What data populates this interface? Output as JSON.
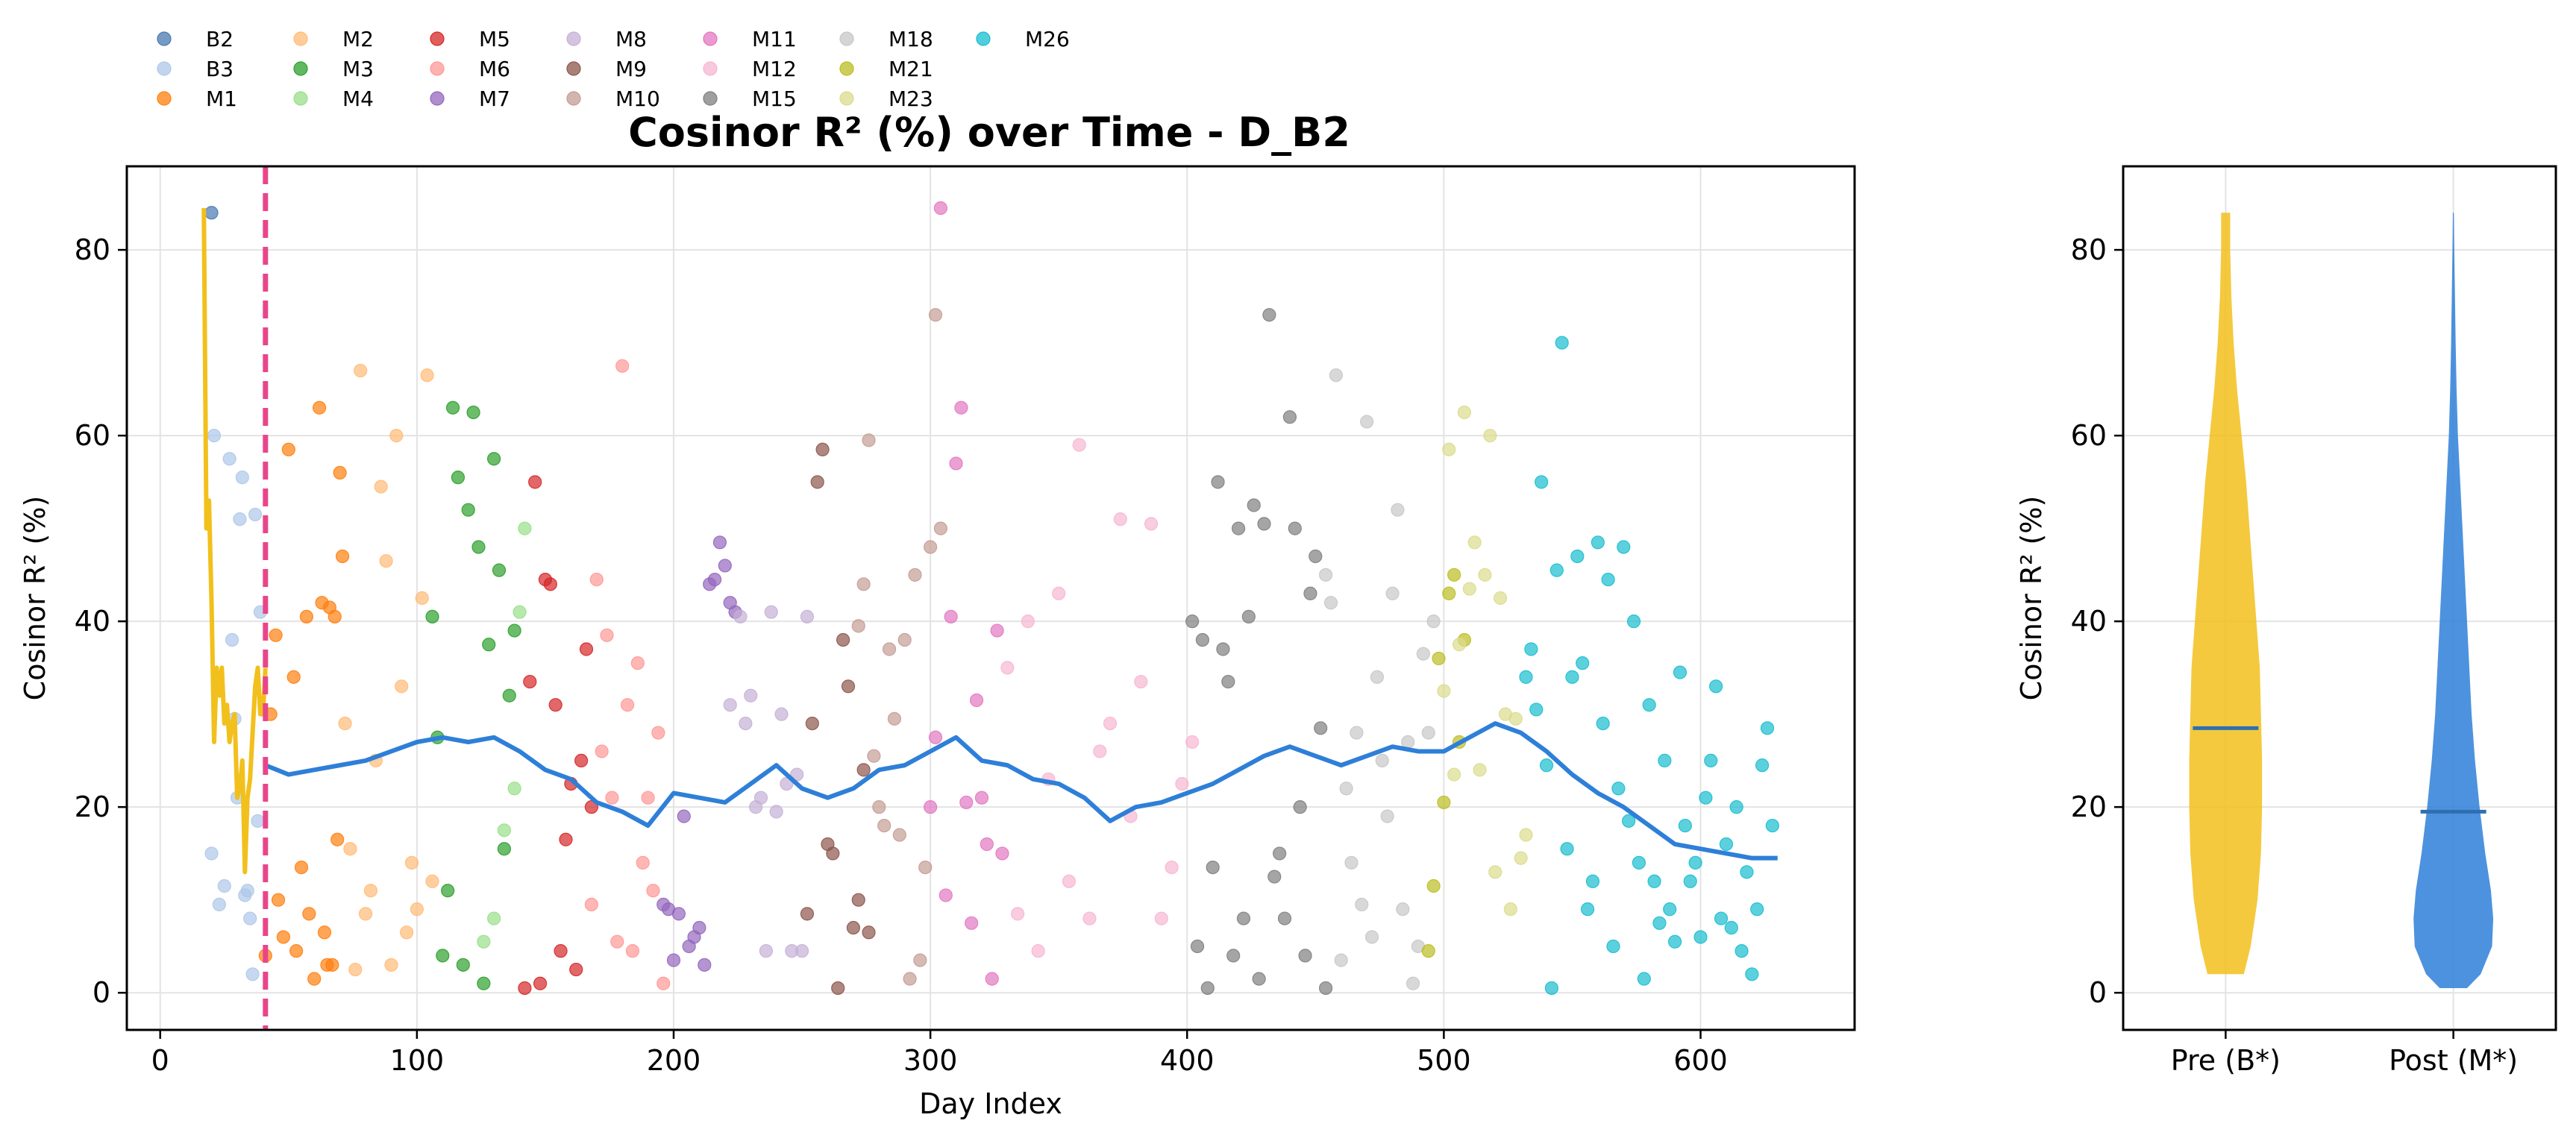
{
  "chart_data": [
    {
      "type": "scatter",
      "title": "Cosinor R² (%) over Time - D_B2",
      "xlabel": "Day Index",
      "ylabel": "Cosinor R² (%)",
      "xlim": [
        -13,
        660
      ],
      "ylim": [
        -4,
        89
      ],
      "xticks": [
        0,
        100,
        200,
        300,
        400,
        500,
        600
      ],
      "yticks": [
        0,
        20,
        40,
        60,
        80
      ],
      "grid": true,
      "legend_position": "top-left, above plot",
      "vline": {
        "x": 41,
        "color": "#e8458b",
        "style": "dashed"
      },
      "series": [
        {
          "name": "B2",
          "color": "#4878b0",
          "x": [
            20
          ],
          "y": [
            84
          ]
        },
        {
          "name": "B3",
          "color": "#aec7e8",
          "x": [
            20,
            21,
            23,
            25,
            27,
            28,
            29,
            30,
            31,
            32,
            33,
            34,
            35,
            36,
            37,
            38,
            39
          ],
          "y": [
            15,
            60,
            9.5,
            11.5,
            57.5,
            38,
            29.5,
            21,
            51,
            55.5,
            10.5,
            11,
            8,
            2,
            51.5,
            18.5,
            41
          ]
        },
        {
          "name": "M1",
          "color": "#ff7f0e",
          "x": [
            41,
            43,
            45,
            46,
            48,
            50,
            52,
            53,
            55,
            57,
            58,
            60,
            62,
            63,
            64,
            65,
            66,
            67,
            68,
            69,
            70,
            71
          ],
          "y": [
            4,
            30,
            38.5,
            10,
            6,
            58.5,
            34,
            4.5,
            13.5,
            40.5,
            8.5,
            1.5,
            63,
            42,
            6.5,
            3,
            41.5,
            3,
            40.5,
            16.5,
            56,
            47
          ]
        },
        {
          "name": "M2",
          "color": "#ffbb78",
          "x": [
            72,
            74,
            76,
            78,
            80,
            82,
            84,
            86,
            88,
            90,
            92,
            94,
            96,
            98,
            100,
            102,
            104,
            106
          ],
          "y": [
            29,
            15.5,
            2.5,
            67,
            8.5,
            11,
            25,
            54.5,
            46.5,
            3,
            60,
            33,
            6.5,
            14,
            9,
            42.5,
            66.5,
            12
          ]
        },
        {
          "name": "M3",
          "color": "#2ca02c",
          "x": [
            106,
            108,
            110,
            112,
            114,
            116,
            118,
            120,
            122,
            124,
            126,
            128,
            130,
            132,
            134,
            136,
            138
          ],
          "y": [
            40.5,
            27.5,
            4,
            11,
            63,
            55.5,
            3,
            52,
            62.5,
            48,
            1,
            37.5,
            57.5,
            45.5,
            15.5,
            32,
            39
          ]
        },
        {
          "name": "M4",
          "color": "#98df8a",
          "x": [
            126,
            130,
            134,
            138,
            140,
            142
          ],
          "y": [
            5.5,
            8,
            17.5,
            22,
            41,
            50
          ]
        },
        {
          "name": "M5",
          "color": "#d62728",
          "x": [
            142,
            144,
            146,
            148,
            150,
            152,
            154,
            156,
            158,
            160,
            162,
            164,
            166,
            168
          ],
          "y": [
            0.5,
            33.5,
            55,
            1,
            44.5,
            44,
            31,
            4.5,
            16.5,
            22.5,
            2.5,
            25,
            37,
            20
          ]
        },
        {
          "name": "M6",
          "color": "#ff9896",
          "x": [
            168,
            170,
            172,
            174,
            176,
            178,
            180,
            182,
            184,
            186,
            188,
            190,
            192,
            194,
            196
          ],
          "y": [
            9.5,
            44.5,
            26,
            38.5,
            21,
            5.5,
            67.5,
            31,
            4.5,
            35.5,
            14,
            21,
            11,
            28,
            1
          ]
        },
        {
          "name": "M7",
          "color": "#9467bd",
          "x": [
            196,
            198,
            200,
            202,
            204,
            206,
            208,
            210,
            212,
            214,
            216,
            218,
            220,
            222,
            224
          ],
          "y": [
            9.5,
            9,
            3.5,
            8.5,
            19,
            5,
            6,
            7,
            3,
            44,
            44.5,
            48.5,
            46,
            42,
            41
          ]
        },
        {
          "name": "M8",
          "color": "#c5b0d5",
          "x": [
            222,
            226,
            228,
            230,
            232,
            234,
            236,
            238,
            240,
            242,
            244,
            246,
            248,
            250,
            252
          ],
          "y": [
            31,
            40.5,
            29,
            32,
            20,
            21,
            4.5,
            41,
            19.5,
            30,
            22.5,
            4.5,
            23.5,
            4.5,
            40.5
          ]
        },
        {
          "name": "M9",
          "color": "#8c564b",
          "x": [
            252,
            254,
            256,
            258,
            260,
            262,
            264,
            266,
            268,
            270,
            272,
            274,
            276
          ],
          "y": [
            8.5,
            29,
            55,
            58.5,
            16,
            15,
            0.5,
            38,
            33,
            7,
            10,
            24,
            6.5
          ]
        },
        {
          "name": "M10",
          "color": "#c49c94",
          "x": [
            272,
            274,
            276,
            278,
            280,
            282,
            284,
            286,
            288,
            290,
            292,
            294,
            296,
            298,
            300,
            302,
            304
          ],
          "y": [
            39.5,
            44,
            59.5,
            25.5,
            20,
            18,
            37,
            29.5,
            17,
            38,
            1.5,
            45,
            3.5,
            13.5,
            48,
            73,
            50
          ]
        },
        {
          "name": "M11",
          "color": "#e377c2",
          "x": [
            300,
            302,
            304,
            306,
            308,
            310,
            312,
            314,
            316,
            318,
            320,
            322,
            324,
            326,
            328
          ],
          "y": [
            20,
            27.5,
            84.5,
            10.5,
            40.5,
            57,
            63,
            20.5,
            7.5,
            31.5,
            21,
            16,
            1.5,
            39,
            15
          ]
        },
        {
          "name": "M12",
          "color": "#f7b6d2",
          "x": [
            330,
            334,
            338,
            342,
            346,
            350,
            354,
            358,
            362,
            366,
            370,
            374,
            378,
            382,
            386,
            390,
            394,
            398,
            402
          ],
          "y": [
            35,
            8.5,
            40,
            4.5,
            23,
            43,
            12,
            59,
            8,
            26,
            29,
            51,
            19,
            33.5,
            50.5,
            8,
            13.5,
            22.5,
            27
          ]
        },
        {
          "name": "M15",
          "color": "#7f7f7f",
          "x": [
            402,
            404,
            406,
            408,
            410,
            412,
            414,
            416,
            418,
            420,
            422,
            424,
            426,
            428,
            430,
            432,
            434,
            436,
            438,
            440,
            442,
            444,
            446,
            448,
            450,
            452,
            454
          ],
          "y": [
            40,
            5,
            38,
            0.5,
            13.5,
            55,
            37,
            33.5,
            4,
            50,
            8,
            40.5,
            52.5,
            1.5,
            50.5,
            73,
            12.5,
            15,
            8,
            62,
            50,
            20,
            4,
            43,
            47,
            28.5,
            0.5
          ]
        },
        {
          "name": "M18",
          "color": "#c7c7c7",
          "x": [
            454,
            456,
            458,
            460,
            462,
            464,
            466,
            468,
            470,
            472,
            474,
            476,
            478,
            480,
            482,
            484,
            486,
            488,
            490,
            492,
            494,
            496
          ],
          "y": [
            45,
            42,
            66.5,
            3.5,
            22,
            14,
            28,
            9.5,
            61.5,
            6,
            34,
            25,
            19,
            43,
            52,
            9,
            27,
            1,
            5,
            36.5,
            28,
            40
          ]
        },
        {
          "name": "M21",
          "color": "#bcbd22",
          "x": [
            494,
            496,
            498,
            500,
            502,
            504,
            506,
            508
          ],
          "y": [
            4.5,
            11.5,
            36,
            20.5,
            43,
            45,
            27,
            38
          ]
        },
        {
          "name": "M23",
          "color": "#dbdb8d",
          "x": [
            500,
            502,
            504,
            506,
            508,
            510,
            512,
            514,
            516,
            518,
            520,
            522,
            524,
            526,
            528,
            530,
            532
          ],
          "y": [
            32.5,
            58.5,
            23.5,
            37.5,
            62.5,
            43.5,
            48.5,
            24,
            45,
            60,
            13,
            42.5,
            30,
            9,
            29.5,
            14.5,
            17
          ]
        },
        {
          "name": "M26",
          "color": "#17becf",
          "x": [
            532,
            534,
            536,
            538,
            540,
            542,
            544,
            546,
            548,
            550,
            552,
            554,
            556,
            558,
            560,
            562,
            564,
            566,
            568,
            570,
            572,
            574,
            576,
            578,
            580,
            582,
            584,
            586,
            588,
            590,
            592,
            594,
            596,
            598,
            600,
            602,
            604,
            606,
            608,
            610,
            612,
            614,
            616,
            618,
            620,
            622,
            624,
            626,
            628
          ],
          "y": [
            34,
            37,
            30.5,
            55,
            24.5,
            0.5,
            45.5,
            70,
            15.5,
            34,
            47,
            35.5,
            9,
            12,
            48.5,
            29,
            44.5,
            5,
            22,
            48,
            18.5,
            40,
            14,
            1.5,
            31,
            12,
            7.5,
            25,
            9,
            5.5,
            34.5,
            18,
            12,
            14,
            6,
            21,
            25,
            33,
            8,
            16,
            7,
            20,
            4.5,
            13,
            2,
            9,
            24.5,
            28.5,
            18
          ]
        }
      ],
      "rolling_mean": {
        "color": "#2e7fd8",
        "x": [
          41,
          50,
          60,
          70,
          80,
          90,
          100,
          110,
          120,
          130,
          140,
          150,
          160,
          170,
          180,
          190,
          200,
          210,
          220,
          230,
          240,
          250,
          260,
          270,
          280,
          290,
          300,
          310,
          320,
          330,
          340,
          350,
          360,
          370,
          380,
          390,
          400,
          410,
          420,
          430,
          440,
          450,
          460,
          470,
          480,
          490,
          500,
          510,
          520,
          530,
          540,
          550,
          560,
          570,
          580,
          590,
          600,
          610,
          620,
          630
        ],
        "y": [
          24.5,
          23.5,
          24,
          24.5,
          25,
          26,
          27,
          27.5,
          27,
          27.5,
          26,
          24,
          23,
          20.5,
          19.5,
          18,
          21.5,
          21,
          20.5,
          22.5,
          24.5,
          22,
          21,
          22,
          24,
          24.5,
          26,
          27.5,
          25,
          24.5,
          23,
          22.5,
          21,
          18.5,
          20,
          20.5,
          21.5,
          22.5,
          24,
          25.5,
          26.5,
          25.5,
          24.5,
          25.5,
          26.5,
          26,
          26,
          27.5,
          29,
          28,
          26,
          23.5,
          21.5,
          20,
          18,
          16,
          15.5,
          15,
          14.5,
          14.5
        ]
      },
      "pre_line": {
        "color": "#f2c01c",
        "x": [
          17,
          18,
          19,
          20,
          21,
          22,
          23,
          24,
          25,
          26,
          27,
          28,
          29,
          30,
          31,
          32,
          33,
          34,
          35,
          36,
          37,
          38,
          39,
          40,
          41
        ],
        "y": [
          84.5,
          50,
          53,
          42,
          27,
          35,
          32,
          35,
          29,
          31,
          27,
          29,
          30,
          21,
          22,
          25,
          13,
          21,
          23,
          28,
          33,
          35,
          30,
          30,
          35
        ]
      }
    },
    {
      "type": "violin",
      "ylabel": "Cosinor R² (%)",
      "ylim": [
        -4,
        89
      ],
      "yticks": [
        0,
        20,
        40,
        60,
        80
      ],
      "grid": true,
      "categories": [
        "Pre (B*)",
        "Post (M*)"
      ],
      "medians": [
        28.5,
        19.5
      ],
      "colors": [
        "#f2c01c",
        "#2e7fd8"
      ],
      "violins": [
        {
          "y": [
            2,
            5,
            10,
            15,
            20,
            25,
            30,
            35,
            40,
            45,
            50,
            55,
            60,
            65,
            70,
            75,
            80,
            84
          ],
          "half_width": [
            0.08,
            0.11,
            0.14,
            0.155,
            0.16,
            0.16,
            0.155,
            0.15,
            0.135,
            0.12,
            0.105,
            0.09,
            0.07,
            0.05,
            0.035,
            0.025,
            0.02,
            0.02
          ]
        },
        {
          "y": [
            0.5,
            2,
            5,
            8,
            11,
            15,
            20,
            25,
            30,
            35,
            40,
            45,
            50,
            55,
            60,
            65,
            70,
            75,
            80,
            84
          ],
          "half_width": [
            0.06,
            0.12,
            0.17,
            0.175,
            0.165,
            0.14,
            0.115,
            0.095,
            0.08,
            0.07,
            0.06,
            0.05,
            0.04,
            0.03,
            0.02,
            0.014,
            0.01,
            0.007,
            0.004,
            0.002
          ]
        }
      ]
    }
  ]
}
